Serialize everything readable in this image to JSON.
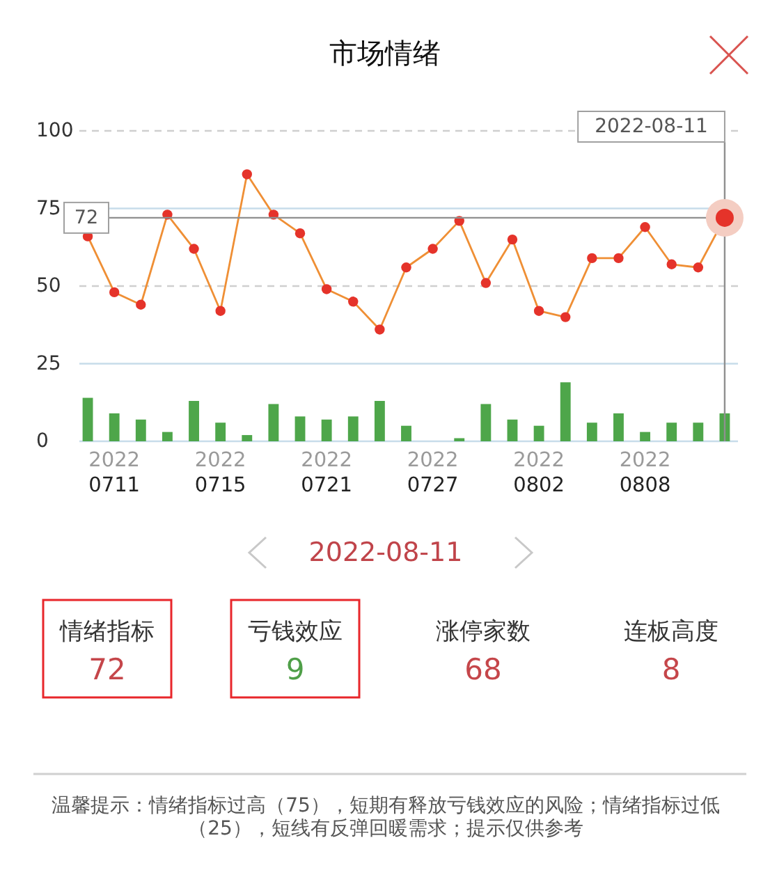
{
  "chart_data": [
    {
      "type": "line",
      "title": "市场情绪",
      "categories": [
        null,
        "2022\n0711",
        null,
        null,
        null,
        "2022\n0715",
        null,
        null,
        null,
        "2022\n0721",
        null,
        null,
        null,
        "2022\n0727",
        null,
        null,
        null,
        "2022\n0802",
        null,
        null,
        null,
        "2022\n0808",
        null,
        null,
        null
      ],
      "series": [
        {
          "type": "bar",
          "color": "#4ea64a",
          "values": [
            14,
            9,
            7,
            3,
            13,
            6,
            2,
            12,
            8,
            7,
            8,
            13,
            5,
            0,
            1,
            12,
            7,
            5,
            19,
            6,
            9,
            3,
            6,
            6,
            9
          ]
        },
        {
          "type": "line",
          "color": "#ef8f35",
          "colors": [
            "#e5332a",
            "#e5332a",
            "#e5332a",
            "#e5332a",
            "#e5332a",
            "#e5332a",
            "#e5332a",
            "#e5332a",
            "#e5332a",
            "#e5332a",
            "#e5332a",
            "#e5332a",
            "#e5332a",
            "#e5332a",
            "#e5332a",
            "#e5332a",
            "#e5332a",
            "#e5332a",
            "#e5332a",
            "#e5332a",
            "#e5332a",
            "#e5332a",
            "#e5332a",
            "#e5332a",
            "#e5332a"
          ],
          "values": [
            66,
            48,
            44,
            73,
            62,
            42,
            86,
            73,
            67,
            49,
            45,
            36,
            56,
            62,
            71,
            51,
            65,
            42,
            40,
            59,
            59,
            69,
            57,
            56,
            72
          ]
        }
      ],
      "ylim": [
        0,
        100
      ],
      "yticks": [
        0,
        25,
        50,
        75,
        100
      ],
      "marker": "circle",
      "ref_lines": [
        {
          "axis": "y",
          "value": 100,
          "color": "#cfcfcf",
          "line_style": "dashed"
        },
        {
          "axis": "y",
          "value": 50,
          "color": "#cfcfcf",
          "line_style": "dashed"
        },
        {
          "axis": "y",
          "value": 75,
          "color": "#c7dcea"
        },
        {
          "axis": "y",
          "value": 25,
          "color": "#c7dcea"
        },
        {
          "axis": "y",
          "value": 72,
          "label": "72",
          "color": "#8f8f8f"
        }
      ],
      "annotations": [
        "2022-08-11"
      ]
    },
    {
      "type": "other",
      "title": "2022-08-11",
      "categories": [
        "情绪指标",
        "亏钱效应",
        "涨停家数",
        "连板高度"
      ],
      "values": [
        72,
        9,
        68,
        8
      ],
      "data_labels": true,
      "colors": [
        "#c5464a",
        "#4f9f48",
        "#c5464a",
        "#c5464a"
      ],
      "annotations": [
        "温馨提示：情绪指标过高（75），短期有释放亏钱效应的风险；情绪指标过低（25），短线有反弹回暖需求；提示仅供参考"
      ]
    }
  ]
}
